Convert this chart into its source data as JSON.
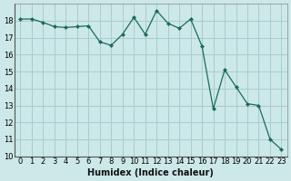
{
  "x": [
    0,
    1,
    2,
    3,
    4,
    5,
    6,
    7,
    8,
    9,
    10,
    11,
    12,
    13,
    14,
    15,
    16,
    17,
    18,
    19,
    20,
    21,
    22,
    23
  ],
  "y": [
    18.1,
    18.1,
    17.9,
    17.65,
    17.6,
    17.65,
    17.7,
    16.75,
    16.55,
    17.2,
    18.2,
    17.2,
    18.6,
    17.85,
    17.55,
    18.1,
    16.5,
    12.8,
    15.1,
    14.1,
    13.1,
    13.0,
    11.0,
    10.4
  ],
  "background_color": "#cce8e8",
  "grid_color": "#aacccc",
  "line_color": "#1a6b5a",
  "marker_color": "#1a6b5a",
  "xlabel": "Humidex (Indice chaleur)",
  "ylim": [
    10,
    19
  ],
  "xlim": [
    -0.5,
    23.5
  ],
  "yticks": [
    10,
    11,
    12,
    13,
    14,
    15,
    16,
    17,
    18
  ],
  "xticks": [
    0,
    1,
    2,
    3,
    4,
    5,
    6,
    7,
    8,
    9,
    10,
    11,
    12,
    13,
    14,
    15,
    16,
    17,
    18,
    19,
    20,
    21,
    22,
    23
  ],
  "xlabel_fontsize": 7,
  "tick_fontsize": 6
}
